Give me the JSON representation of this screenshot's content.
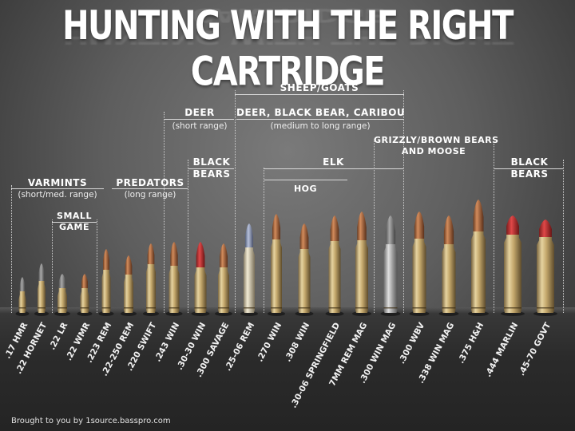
{
  "title": "HUNTING WITH THE RIGHT CARTRIDGE",
  "categories": {
    "sheep_goats": "SHEEP/GOATS",
    "deer": "DEER",
    "deer_range": "(short range)",
    "deer_big": "DEER, BLACK BEAR, CARIBOU",
    "deer_big_range": "(medium to long range)",
    "grizzly_1": "GRIZZLY/BROWN BEARS",
    "grizzly_2": "AND MOOSE",
    "black_bears_1_a": "BLACK",
    "black_bears_1_b": "BEARS",
    "black_bears_2_a": "BLACK",
    "black_bears_2_b": "BEARS",
    "elk": "ELK",
    "hog": "HOG",
    "varmints": "VARMINTS",
    "varmints_range": "(short/med. range)",
    "predators": "PREDATORS",
    "predators_range": "(long range)",
    "small_game_a": "SMALL",
    "small_game_b": "GAME"
  },
  "cartridges": [
    ".17 HMR",
    ".22 HORNET",
    ".22 LR",
    ".22 WMR",
    ".223 REM",
    ".22-250 REM",
    ".220 SWIFT",
    ".243 WIN",
    ".30-30 WIN",
    ".300 SAVAGE",
    ".25-06 REM",
    ".270 WIN",
    ".308 WIN",
    ".30-06 SPRINGFIELD",
    "7MM REM MAG",
    ".300 WIN MAG",
    ".300 WBV",
    ".338 WIN MAG",
    ".375 H&H",
    ".444 MARLIN",
    ".45-70 GOVT"
  ],
  "credit": "Brought to you by 1source.basspro.com"
}
